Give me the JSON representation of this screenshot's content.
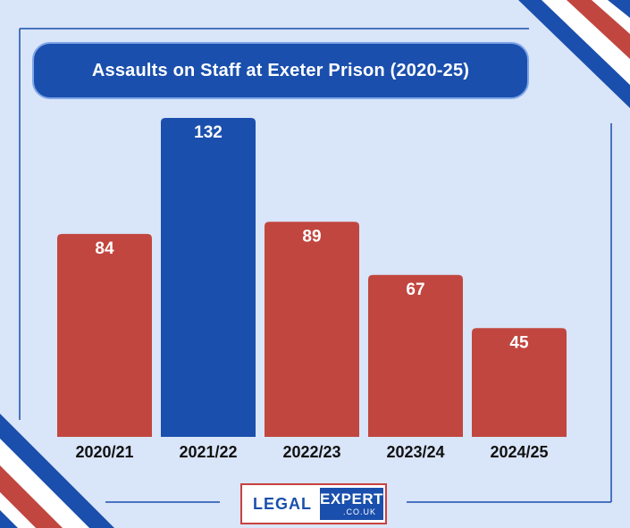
{
  "chart_data": {
    "type": "bar",
    "title": "Assaults on Staff at Exeter Prison (2020-25)",
    "categories": [
      "2020/21",
      "2021/22",
      "2022/23",
      "2023/24",
      "2024/25"
    ],
    "values": [
      84,
      132,
      89,
      67,
      45
    ],
    "ylim": [
      0,
      132
    ],
    "bar_colors": [
      "#c1463f",
      "#1a4fad",
      "#c1463f",
      "#c1463f",
      "#c1463f"
    ],
    "grid": false,
    "legend": "none"
  },
  "logo": {
    "left": "LEGAL",
    "right": "EXPERT",
    "suffix": ".CO.UK"
  },
  "colors": {
    "background": "#d9e5f8",
    "accent_red": "#c1463f",
    "accent_blue": "#1a4fad"
  }
}
